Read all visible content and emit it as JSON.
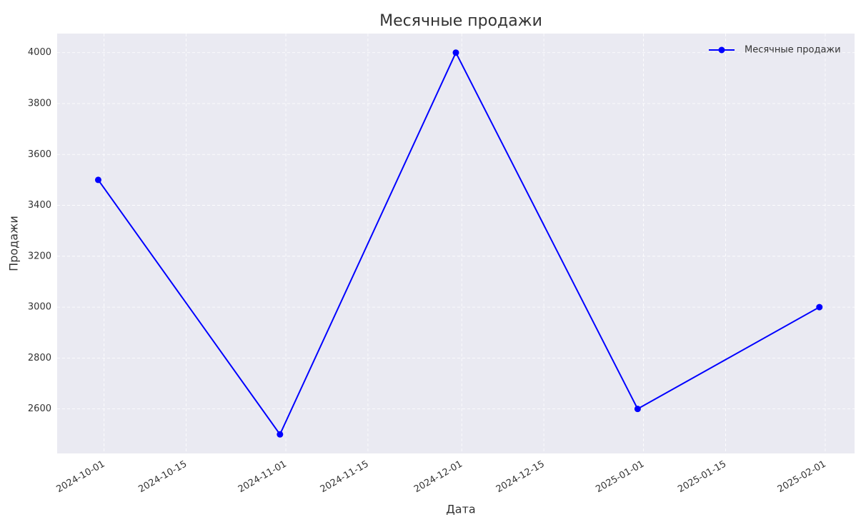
{
  "chart_data": {
    "type": "line",
    "title": "Месячные продажи",
    "xlabel": "Дата",
    "ylabel": "Продажи",
    "x": [
      "2024-09-30",
      "2024-10-31",
      "2024-11-30",
      "2024-12-31",
      "2025-01-31"
    ],
    "series": [
      {
        "name": "Месячные продажи",
        "color": "#0000ff",
        "values": [
          3500,
          2500,
          4000,
          2600,
          3000
        ]
      }
    ],
    "xlim": [
      "2024-09-23",
      "2025-02-06"
    ],
    "xticks": [
      "2024-10-01",
      "2024-10-15",
      "2024-11-01",
      "2024-11-15",
      "2024-12-01",
      "2024-12-15",
      "2025-01-01",
      "2025-01-15",
      "2025-02-01"
    ],
    "ylim": [
      2425,
      4075
    ],
    "yticks": [
      2600,
      2800,
      3000,
      3200,
      3400,
      3600,
      3800,
      4000
    ],
    "grid": true,
    "legend": "upper right"
  }
}
